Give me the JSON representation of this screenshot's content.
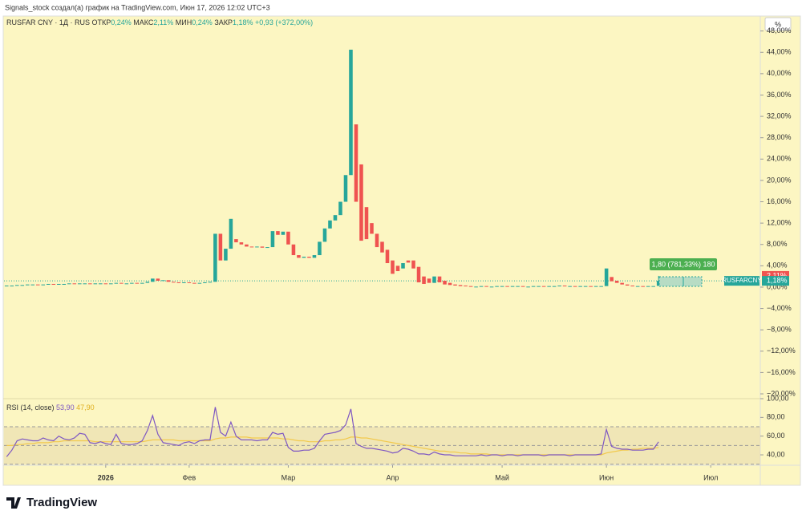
{
  "header": {
    "attribution": "Signals_stock создал(а) график на TradingView.com, Июн 17, 2026 12:02 UTC+3"
  },
  "chart_data": {
    "type": "candlestick",
    "legend": {
      "symbol": "RUSFAR CNY · 1Д · RUS",
      "open_label": "ОТКР",
      "open_value": "0,24%",
      "high_label": "МАКС",
      "high_value": "2,11%",
      "low_label": "МИН",
      "low_value": "0,24%",
      "close_label": "ЗАКР",
      "close_value": "1,18%",
      "change": "+0,93 (+372,00%)"
    },
    "colors": {
      "up": "#26a69a",
      "down": "#ef5350"
    },
    "open": [
      0.2,
      0.3,
      0.3,
      0.4,
      0.4,
      0.5,
      0.5,
      0.4,
      0.5,
      0.6,
      0.5,
      0.6,
      0.6,
      0.7,
      0.6,
      0.7,
      0.7,
      0.6,
      0.7,
      0.7,
      0.6,
      0.7,
      0.8,
      0.7,
      0.7,
      0.8,
      0.7,
      0.8,
      1.0,
      1.6,
      1.2,
      1.3,
      1.0,
      0.9,
      0.8,
      0.9,
      0.8,
      0.7,
      0.8,
      0.9,
      1.0,
      10.0,
      5.0,
      7.2,
      9.0,
      8.4,
      8.0,
      7.6,
      7.5,
      7.6,
      7.4,
      7.5,
      10.5,
      9.8,
      10.4,
      8.0,
      6.0,
      5.5,
      5.7,
      5.5,
      6.0,
      8.5,
      11.0,
      12.5,
      13.5,
      16.0,
      21.0,
      30.5,
      23.0,
      15.0,
      12.0,
      10.0,
      8.5,
      7.0,
      5.0,
      4.0,
      3.5,
      5.0,
      5.0,
      3.8,
      2.0,
      1.6,
      0.8,
      2.0,
      1.2,
      0.8,
      0.5,
      0.4,
      0.3,
      0.2,
      0.1,
      0.1,
      0.2,
      0.1,
      0.1,
      0.2,
      0.2,
      0.1,
      0.2,
      0.2,
      0.1,
      0.1,
      0.2,
      0.2,
      0.1,
      0.2,
      0.2,
      0.3,
      0.2,
      0.2,
      0.1,
      0.2,
      0.2,
      0.1,
      0.2,
      0.2,
      1.9,
      1.2,
      0.8,
      0.5,
      0.3,
      0.2,
      0.2,
      0.1,
      0.2,
      0.24
    ],
    "close": [
      0.3,
      0.3,
      0.4,
      0.4,
      0.5,
      0.5,
      0.4,
      0.5,
      0.6,
      0.5,
      0.6,
      0.6,
      0.7,
      0.6,
      0.7,
      0.7,
      0.6,
      0.7,
      0.7,
      0.6,
      0.7,
      0.8,
      0.7,
      0.7,
      0.8,
      0.7,
      0.8,
      1.0,
      1.6,
      1.2,
      1.3,
      1.0,
      0.9,
      0.8,
      0.9,
      0.8,
      0.7,
      0.8,
      0.9,
      1.0,
      10.0,
      5.0,
      7.2,
      12.8,
      8.4,
      8.0,
      7.6,
      7.5,
      7.6,
      7.4,
      7.5,
      10.5,
      9.8,
      10.4,
      8.0,
      6.0,
      5.5,
      5.7,
      5.5,
      6.0,
      8.5,
      11.0,
      12.5,
      13.5,
      16.0,
      21.0,
      44.5,
      16.0,
      8.7,
      9.0,
      10.0,
      7.5,
      6.5,
      4.5,
      2.5,
      3.0,
      4.5,
      4.6,
      3.5,
      0.9,
      0.6,
      0.8,
      2.0,
      0.9,
      0.5,
      0.4,
      0.3,
      0.2,
      0.2,
      0.1,
      0.1,
      0.2,
      0.1,
      0.1,
      0.2,
      0.2,
      0.1,
      0.2,
      0.2,
      0.1,
      0.1,
      0.2,
      0.2,
      0.1,
      0.2,
      0.2,
      0.3,
      0.2,
      0.2,
      0.1,
      0.2,
      0.2,
      0.1,
      0.2,
      0.2,
      3.5,
      1.1,
      0.8,
      0.5,
      0.3,
      0.2,
      0.2,
      0.1,
      0.2,
      0.2,
      1.18
    ],
    "xlim": [
      -0.5,
      144.5
    ],
    "xticks": [
      {
        "value": 19,
        "label": "2026"
      },
      {
        "value": 35,
        "label": "Фев"
      },
      {
        "value": 54,
        "label": "Мар"
      },
      {
        "value": 74,
        "label": "Апр"
      },
      {
        "value": 95,
        "label": "Май"
      },
      {
        "value": 115,
        "label": "Июн"
      },
      {
        "value": 135,
        "label": "Июл"
      }
    ],
    "ylim": [
      -20.9,
      49.3
    ],
    "yticks": [
      {
        "value": 48,
        "label": "48,00%"
      },
      {
        "value": 44,
        "label": "44,00%"
      },
      {
        "value": 40,
        "label": "40,00%"
      },
      {
        "value": 36,
        "label": "36,00%"
      },
      {
        "value": 32,
        "label": "32,00%"
      },
      {
        "value": 28,
        "label": "28,00%"
      },
      {
        "value": 24,
        "label": "24,00%"
      },
      {
        "value": 20,
        "label": "20,00%"
      },
      {
        "value": 16,
        "label": "16,00%"
      },
      {
        "value": 12,
        "label": "12,00%"
      },
      {
        "value": 8,
        "label": "8,00%"
      },
      {
        "value": 4,
        "label": "4,00%"
      },
      {
        "value": 0,
        "label": "0,00%"
      },
      {
        "value": -4,
        "label": "−4,00%"
      },
      {
        "value": -8,
        "label": "−8,00%"
      },
      {
        "value": -12,
        "label": "−12,00%"
      },
      {
        "value": -16,
        "label": "−16,00%"
      },
      {
        "value": -20,
        "label": "−20,00%"
      }
    ],
    "price_labels": [
      {
        "value": 2.11,
        "label": "2,11%",
        "color": "#ef5350"
      },
      {
        "value": 1.18,
        "label": "1,18%",
        "color": "#26a69a"
      }
    ],
    "symbol_tag": "RUSFARCNY",
    "annotation": "1,80 (781,33%) 180",
    "scale_button": "%",
    "rsi": {
      "title": "RSI (14, close)",
      "value_label": "53,90",
      "ma_label": "47,90",
      "color": "#7e57c2",
      "ma_color": "#f2c94c",
      "values": [
        38,
        45,
        55,
        57,
        56,
        55,
        55,
        58,
        56,
        55,
        60,
        57,
        56,
        58,
        63,
        62,
        53,
        52,
        54,
        52,
        51,
        62,
        52,
        51,
        51,
        52,
        55,
        66,
        82,
        62,
        53,
        52,
        51,
        50,
        53,
        54,
        52,
        55,
        56,
        56,
        91,
        64,
        60,
        75,
        60,
        56,
        56,
        56,
        55,
        56,
        56,
        64,
        62,
        63,
        48,
        44,
        44,
        45,
        45,
        47,
        55,
        62,
        63,
        64,
        66,
        72,
        89,
        52,
        49,
        47,
        47,
        46,
        45,
        44,
        42,
        43,
        47,
        46,
        44,
        41,
        41,
        40,
        43,
        41,
        40,
        40,
        39,
        39,
        39,
        39,
        39,
        40,
        39,
        40,
        40,
        39,
        40,
        40,
        39,
        40,
        40,
        40,
        40,
        39,
        40,
        40,
        40,
        40,
        39,
        40,
        40,
        40,
        40,
        40,
        41,
        67,
        49,
        47,
        46,
        46,
        45,
        45,
        45,
        46,
        46,
        53.9
      ],
      "ma": [
        50,
        50,
        51,
        51,
        52,
        52,
        53,
        53,
        53,
        54,
        54,
        55,
        55,
        55,
        55,
        55,
        55,
        54,
        54,
        54,
        54,
        54,
        54,
        54,
        54,
        54,
        54,
        55,
        56,
        56,
        56,
        56,
        56,
        55,
        55,
        55,
        55,
        55,
        55,
        55,
        57,
        58,
        58,
        59,
        59,
        59,
        59,
        58,
        58,
        58,
        58,
        58,
        58,
        57,
        57,
        56,
        55,
        55,
        54,
        54,
        54,
        55,
        55,
        56,
        56,
        57,
        59,
        59,
        58,
        58,
        57,
        56,
        55,
        54,
        53,
        52,
        51,
        50,
        49,
        48,
        47,
        46,
        45,
        44,
        44,
        43,
        43,
        42,
        42,
        41,
        41,
        41,
        41,
        40,
        40,
        40,
        40,
        40,
        40,
        40,
        40,
        40,
        40,
        40,
        40,
        40,
        40,
        40,
        40,
        40,
        40,
        40,
        40,
        40,
        40,
        42,
        43,
        44,
        45,
        45,
        46,
        46,
        47,
        47,
        47,
        47.9
      ],
      "ylim": [
        28.9,
        100
      ],
      "yticks": [
        {
          "value": 100,
          "label": "100,00"
        },
        {
          "value": 80,
          "label": "80,00"
        },
        {
          "value": 60,
          "label": "60,00"
        },
        {
          "value": 40,
          "label": "40,00"
        }
      ],
      "levels": [
        70,
        50,
        30
      ]
    }
  },
  "footer": {
    "logo": "TradingView"
  }
}
